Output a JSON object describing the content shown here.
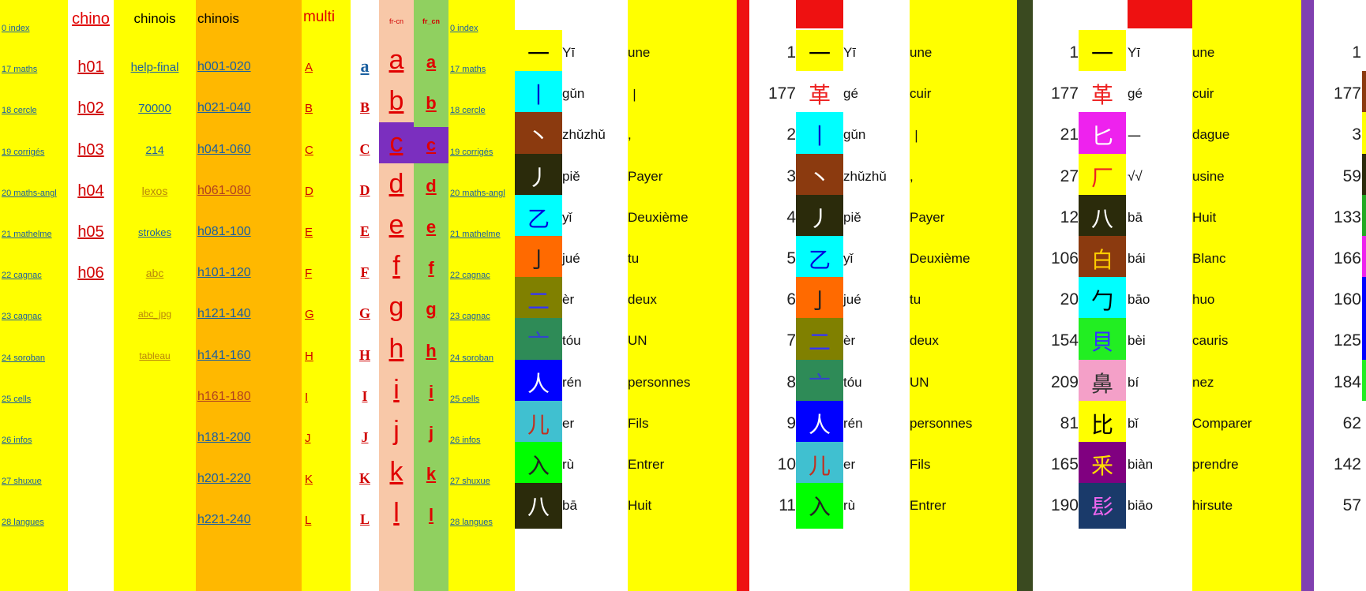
{
  "col_index": {
    "items": [
      "0 index",
      "17 maths",
      "18 cercle",
      "19 corrigés",
      "20 maths-angl",
      "21 mathelme",
      "22 cagnac",
      "23 cagnac",
      "24 soroban",
      "25 cells",
      "26 infos",
      "27 shuxue",
      "28 langues"
    ]
  },
  "col_chino": {
    "header": "chino",
    "items": [
      "h01",
      "h02",
      "h03",
      "h04",
      "h05",
      "h06"
    ]
  },
  "col_chinois": {
    "header": "chinois",
    "items": [
      "help-final",
      "70000",
      "214",
      "lexos",
      "strokes",
      "abc",
      "abc_jpg",
      "tableau"
    ]
  },
  "col_ranges": {
    "header": "chinois",
    "items": [
      "h001-020",
      "h021-040",
      "h041-060",
      "h061-080",
      "h081-100",
      "h101-120",
      "h121-140",
      "h141-160",
      "h161-180",
      "h181-200",
      "h201-220",
      "h221-240"
    ]
  },
  "col_multi": {
    "header": "multi",
    "upper": [
      "A",
      "B",
      "C",
      "D",
      "E",
      "F",
      "G",
      "H",
      "I",
      "J",
      "K",
      "L"
    ],
    "first_lower": "a"
  },
  "col_frcn": {
    "header_a": "fr-cn",
    "header_b": "fr_cn",
    "lower": [
      "a",
      "b",
      "c",
      "d",
      "e",
      "f",
      "g",
      "h",
      "i",
      "j",
      "k",
      "l"
    ]
  },
  "col_index2": {
    "items": [
      "0 index",
      "17 maths",
      "18 cercle",
      "19 corrigés",
      "20 maths-angl",
      "21 mathelme",
      "22 cagnac",
      "23 cagnac",
      "24 soroban",
      "25 cells",
      "26 infos",
      "27 shuxue",
      "28 langues"
    ]
  },
  "table1": {
    "rows": [
      {
        "char": "一",
        "pinyin": "Yī",
        "fr": "une",
        "bg": "#ffff00",
        "cc": "#000000"
      },
      {
        "char": "丨",
        "pinyin": "gǔn",
        "fr": "丨",
        "bg": "#00ffff",
        "cc": "#0000cc"
      },
      {
        "char": "丶",
        "pinyin": "zhǔzhǔ",
        "fr": ",",
        "bg": "#8b3a0f",
        "cc": "#ffffff"
      },
      {
        "char": "丿",
        "pinyin": "piě",
        "fr": "Payer",
        "bg": "#2b2b0b",
        "cc": "#ffffff"
      },
      {
        "char": "乙",
        "pinyin": "yǐ",
        "fr": "Deuxième",
        "bg": "#00ffff",
        "cc": "#0000dd"
      },
      {
        "char": "亅",
        "pinyin": "jué",
        "fr": "tu",
        "bg": "#ff6a00",
        "cc": "#222222"
      },
      {
        "char": "二",
        "pinyin": "èr",
        "fr": "deux",
        "bg": "#808000",
        "cc": "#3333ff"
      },
      {
        "char": "亠",
        "pinyin": "tóu",
        "fr": "UN",
        "bg": "#2e8b57",
        "cc": "#3344cc"
      },
      {
        "char": "人",
        "pinyin": "rén",
        "fr": "personnes",
        "bg": "#0000ff",
        "cc": "#ffffff"
      },
      {
        "char": "儿",
        "pinyin": "er",
        "fr": "Fils",
        "bg": "#40c0d0",
        "cc": "#c03020"
      },
      {
        "char": "入",
        "pinyin": "rù",
        "fr": "Entrer",
        "bg": "#00ff00",
        "cc": "#222222"
      },
      {
        "char": "八",
        "pinyin": "bā",
        "fr": "Huit",
        "bg": "#2b2b0b",
        "cc": "#ffffff"
      }
    ]
  },
  "table2": {
    "rows": [
      {
        "num": "1",
        "char": "一",
        "pinyin": "Yī",
        "fr": "une",
        "bg": "#ffff00",
        "cc": "#000000"
      },
      {
        "num": "177",
        "char": "革",
        "pinyin": "gé",
        "fr": "cuir",
        "bg": "#ffffff",
        "cc": "#ee2222"
      },
      {
        "num": "2",
        "char": "丨",
        "pinyin": "gǔn",
        "fr": "丨",
        "bg": "#00ffff",
        "cc": "#0000cc"
      },
      {
        "num": "3",
        "char": "丶",
        "pinyin": "zhǔzhǔ",
        "fr": ",",
        "bg": "#8b3a0f",
        "cc": "#ffffff"
      },
      {
        "num": "4",
        "char": "丿",
        "pinyin": "piě",
        "fr": "Payer",
        "bg": "#2b2b0b",
        "cc": "#ffffff"
      },
      {
        "num": "5",
        "char": "乙",
        "pinyin": "yǐ",
        "fr": "Deuxième",
        "bg": "#00ffff",
        "cc": "#0000dd"
      },
      {
        "num": "6",
        "char": "亅",
        "pinyin": "jué",
        "fr": "tu",
        "bg": "#ff6a00",
        "cc": "#222222"
      },
      {
        "num": "7",
        "char": "二",
        "pinyin": "èr",
        "fr": "deux",
        "bg": "#808000",
        "cc": "#3333ff"
      },
      {
        "num": "8",
        "char": "亠",
        "pinyin": "tóu",
        "fr": "UN",
        "bg": "#2e8b57",
        "cc": "#3344cc"
      },
      {
        "num": "9",
        "char": "人",
        "pinyin": "rén",
        "fr": "personnes",
        "bg": "#0000ff",
        "cc": "#ffffff"
      },
      {
        "num": "10",
        "char": "儿",
        "pinyin": "er",
        "fr": "Fils",
        "bg": "#40c0d0",
        "cc": "#c03020"
      },
      {
        "num": "11",
        "char": "入",
        "pinyin": "rù",
        "fr": "Entrer",
        "bg": "#00ff00",
        "cc": "#222222"
      }
    ]
  },
  "table3": {
    "rows": [
      {
        "num": "1",
        "char": "一",
        "pinyin": "Yī",
        "fr": "une",
        "bg": "#ffff00",
        "cc": "#000000"
      },
      {
        "num": "177",
        "char": "革",
        "pinyin": "gé",
        "fr": "cuir",
        "bg": "#ffffff",
        "cc": "#ee2222"
      },
      {
        "num": "21",
        "char": "匕",
        "pinyin": "一",
        "fr": "dague",
        "bg": "#ee22ee",
        "cc": "#ffffff"
      },
      {
        "num": "27",
        "char": "厂",
        "pinyin": "√√",
        "fr": "usine",
        "bg": "#ffff00",
        "cc": "#ee2222"
      },
      {
        "num": "12",
        "char": "八",
        "pinyin": "bā",
        "fr": "Huit",
        "bg": "#2b2b0b",
        "cc": "#ffffff"
      },
      {
        "num": "106",
        "char": "白",
        "pinyin": "bái",
        "fr": "Blanc",
        "bg": "#8b3a0f",
        "cc": "#ffcc00"
      },
      {
        "num": "20",
        "char": "勹",
        "pinyin": "bāo",
        "fr": "huo",
        "bg": "#00ffff",
        "cc": "#000000"
      },
      {
        "num": "154",
        "char": "貝",
        "pinyin": "bèi",
        "fr": "cauris",
        "bg": "#22ee22",
        "cc": "#3333ff"
      },
      {
        "num": "209",
        "char": "鼻",
        "pinyin": "bí",
        "fr": "nez",
        "bg": "#f4a0c8",
        "cc": "#333333"
      },
      {
        "num": "81",
        "char": "比",
        "pinyin": "bǐ",
        "fr": "Comparer",
        "bg": "#ffff00",
        "cc": "#000000"
      },
      {
        "num": "165",
        "char": "釆",
        "pinyin": "biàn",
        "fr": "prendre",
        "bg": "#800080",
        "cc": "#ffdd00"
      },
      {
        "num": "190",
        "char": "髟",
        "pinyin": "biāo",
        "fr": "hirsute",
        "bg": "#1a3a6a",
        "cc": "#ee66ee"
      }
    ]
  },
  "edge_numbers": [
    "1",
    "177",
    "3",
    "59",
    "133",
    "166",
    "160",
    "125",
    "184",
    "62",
    "142",
    "57"
  ]
}
